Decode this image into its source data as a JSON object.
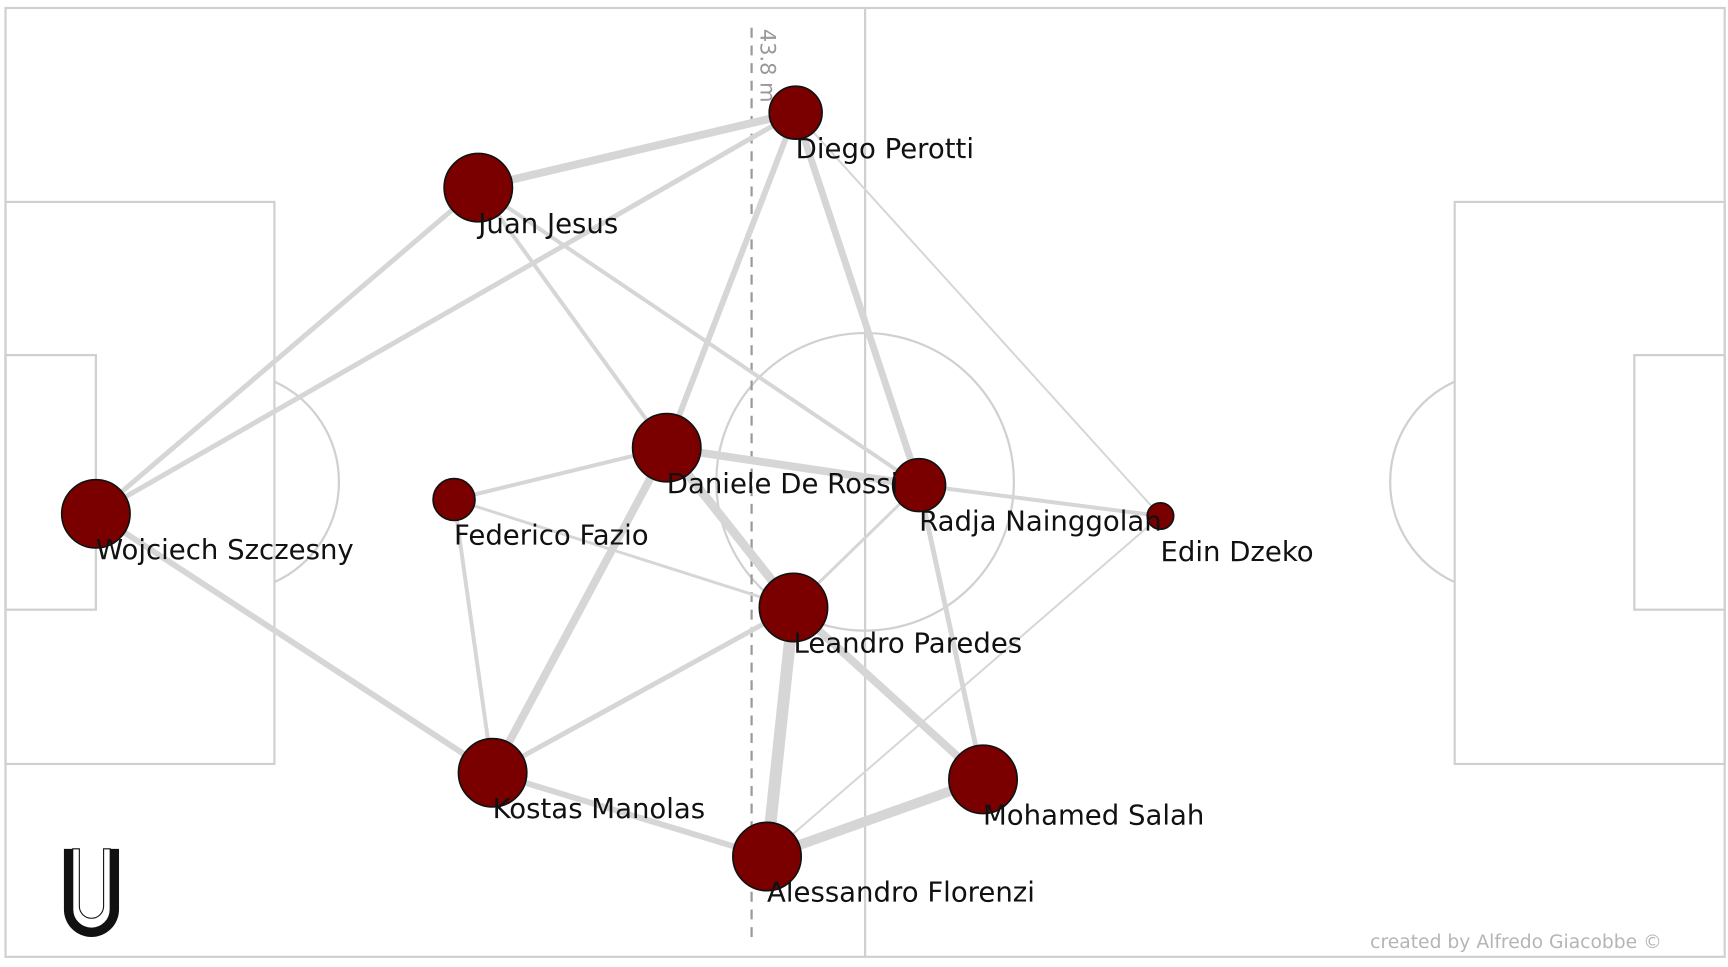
{
  "distance_label": "43.8 m",
  "credit": "created by Alfredo Giacobbe ©",
  "logo": "U",
  "colors": {
    "node": "#7a0000",
    "edge": "#d6d6d6",
    "pitch": "#d0d0d0"
  },
  "players": [
    {
      "name": "Diego Perotti",
      "size": 3
    },
    {
      "name": "Juan Jesus",
      "size": 4
    },
    {
      "name": "Wojciech Szczesny",
      "size": 4
    },
    {
      "name": "Federico Fazio",
      "size": 2
    },
    {
      "name": "Daniele De Rossi",
      "size": 4
    },
    {
      "name": "Radja Nainggolan",
      "size": 3
    },
    {
      "name": "Edin Dzeko",
      "size": 1
    },
    {
      "name": "Leandro Paredes",
      "size": 4
    },
    {
      "name": "Kostas Manolas",
      "size": 4
    },
    {
      "name": "Mohamed Salah",
      "size": 4
    },
    {
      "name": "Alessandro Florenzi",
      "size": 4
    }
  ],
  "passes": [
    {
      "from": "Diego Perotti",
      "to": "Juan Jesus",
      "weight": 8
    },
    {
      "from": "Diego Perotti",
      "to": "Wojciech Szczesny",
      "weight": 5
    },
    {
      "from": "Diego Perotti",
      "to": "Daniele De Rossi",
      "weight": 6
    },
    {
      "from": "Diego Perotti",
      "to": "Radja Nainggolan",
      "weight": 7
    },
    {
      "from": "Diego Perotti",
      "to": "Edin Dzeko",
      "weight": 2
    },
    {
      "from": "Juan Jesus",
      "to": "Wojciech Szczesny",
      "weight": 5
    },
    {
      "from": "Juan Jesus",
      "to": "Daniele De Rossi",
      "weight": 4
    },
    {
      "from": "Juan Jesus",
      "to": "Radja Nainggolan",
      "weight": 4
    },
    {
      "from": "Wojciech Szczesny",
      "to": "Kostas Manolas",
      "weight": 6
    },
    {
      "from": "Federico Fazio",
      "to": "Daniele De Rossi",
      "weight": 4
    },
    {
      "from": "Federico Fazio",
      "to": "Kostas Manolas",
      "weight": 4
    },
    {
      "from": "Federico Fazio",
      "to": "Leandro Paredes",
      "weight": 3
    },
    {
      "from": "Daniele De Rossi",
      "to": "Radja Nainggolan",
      "weight": 8
    },
    {
      "from": "Daniele De Rossi",
      "to": "Leandro Paredes",
      "weight": 9
    },
    {
      "from": "Daniele De Rossi",
      "to": "Kostas Manolas",
      "weight": 8
    },
    {
      "from": "Radja Nainggolan",
      "to": "Edin Dzeko",
      "weight": 4
    },
    {
      "from": "Radja Nainggolan",
      "to": "Leandro Paredes",
      "weight": 3
    },
    {
      "from": "Radja Nainggolan",
      "to": "Mohamed Salah",
      "weight": 5
    },
    {
      "from": "Leandro Paredes",
      "to": "Kostas Manolas",
      "weight": 5
    },
    {
      "from": "Leandro Paredes",
      "to": "Alessandro Florenzi",
      "weight": 12
    },
    {
      "from": "Leandro Paredes",
      "to": "Mohamed Salah",
      "weight": 8
    },
    {
      "from": "Kostas Manolas",
      "to": "Alessandro Florenzi",
      "weight": 6
    },
    {
      "from": "Mohamed Salah",
      "to": "Alessandro Florenzi",
      "weight": 10
    },
    {
      "from": "Alessandro Florenzi",
      "to": "Edin Dzeko",
      "weight": 2
    }
  ]
}
